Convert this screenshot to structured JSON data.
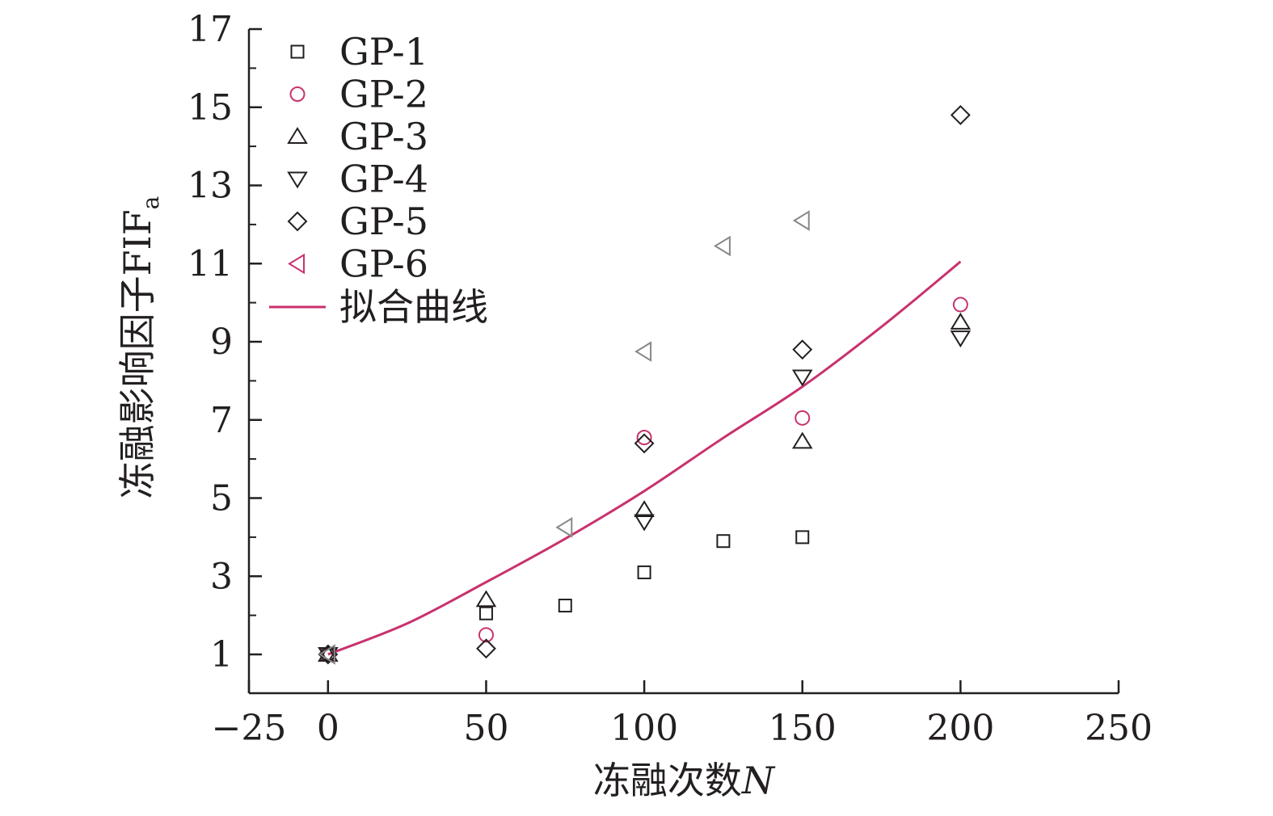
{
  "chart_data": {
    "type": "scatter",
    "xlabel": "冻融次数",
    "xlabel_var": "N",
    "ylabel": "冻融影响因子FIF",
    "ylabel_sub": "a",
    "xlim": [
      -25,
      250
    ],
    "ylim": [
      0,
      17
    ],
    "x_ticks": [
      -25,
      0,
      50,
      100,
      150,
      200,
      250
    ],
    "x_tick_labels": [
      "−25",
      "0",
      "50",
      "100",
      "150",
      "200",
      "250"
    ],
    "y_ticks": [
      1,
      3,
      5,
      7,
      9,
      11,
      13,
      15,
      17
    ],
    "y_tick_labels": [
      "1",
      "3",
      "5",
      "7",
      "9",
      "11",
      "13",
      "15",
      "17"
    ],
    "grid": false,
    "legend_position": "top-left",
    "series": [
      {
        "name": "GP-1",
        "marker": "square",
        "color": "#231f20",
        "points": [
          [
            0,
            1.0
          ],
          [
            50,
            2.05
          ],
          [
            75,
            2.25
          ],
          [
            100,
            3.1
          ],
          [
            125,
            3.9
          ],
          [
            150,
            4.0
          ]
        ]
      },
      {
        "name": "GP-2",
        "marker": "circle",
        "color": "#c8326e",
        "points": [
          [
            0,
            1.0
          ],
          [
            50,
            1.5
          ],
          [
            100,
            6.55
          ],
          [
            150,
            7.05
          ],
          [
            200,
            9.95
          ]
        ]
      },
      {
        "name": "GP-3",
        "marker": "triangle-up",
        "color": "#231f20",
        "points": [
          [
            0,
            1.0
          ],
          [
            50,
            2.4
          ],
          [
            100,
            4.7
          ],
          [
            150,
            6.45
          ],
          [
            200,
            9.5
          ]
        ]
      },
      {
        "name": "GP-4",
        "marker": "triangle-down",
        "color": "#231f20",
        "points": [
          [
            0,
            1.0
          ],
          [
            100,
            4.4
          ],
          [
            150,
            8.1
          ],
          [
            200,
            9.1
          ]
        ]
      },
      {
        "name": "GP-5",
        "marker": "diamond",
        "color": "#231f20",
        "points": [
          [
            0,
            1.0
          ],
          [
            50,
            1.15
          ],
          [
            100,
            6.4
          ],
          [
            150,
            8.8
          ],
          [
            200,
            14.8
          ]
        ]
      },
      {
        "name": "GP-6",
        "marker": "triangle-left",
        "color": "#888888",
        "points": [
          [
            0,
            1.0
          ],
          [
            75,
            4.25
          ],
          [
            100,
            8.75
          ],
          [
            125,
            11.45
          ],
          [
            150,
            12.1
          ]
        ]
      }
    ],
    "fit_line": {
      "name": "拟合曲线",
      "color": "#c8326e",
      "points": [
        [
          0,
          1.0
        ],
        [
          25,
          1.79
        ],
        [
          50,
          2.85
        ],
        [
          75,
          3.96
        ],
        [
          100,
          5.18
        ],
        [
          125,
          6.54
        ],
        [
          150,
          7.85
        ],
        [
          175,
          9.38
        ],
        [
          200,
          11.05
        ]
      ]
    },
    "legend_marker_colors": {
      "GP-1": "#231f20",
      "GP-2": "#c8326e",
      "GP-3": "#231f20",
      "GP-4": "#231f20",
      "GP-5": "#231f20",
      "GP-6": "#c8326e"
    }
  }
}
